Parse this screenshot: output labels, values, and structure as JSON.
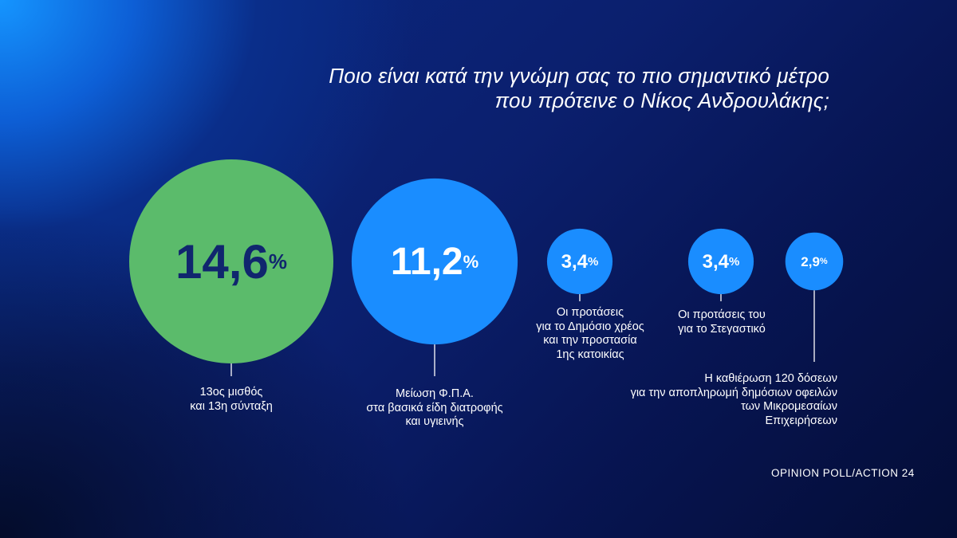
{
  "title": {
    "line1": "Ποιο είναι κατά την γνώμη σας το πιο σημαντικό μέτρο",
    "line2": "που πρότεινε ο Νίκος Ανδρουλάκης;"
  },
  "chart_data": {
    "type": "bubble",
    "unit": "%",
    "categories": [
      "13ος μισθός και 13η σύνταξη",
      "Μείωση Φ.Π.Α. στα βασικά είδη διατροφής και υγιεινής",
      "Οι προτάσεις για το Δημόσιο χρέος και την προστασία 1ης κατοικίας",
      "Οι προτάσεις του για το Στεγαστικό",
      "Η καθιέρωση 120 δόσεων για την αποπληρωμή δημόσιων οφειλών των Μικρομεσαίων Επιχειρήσεων"
    ],
    "values": [
      14.6,
      11.2,
      3.4,
      3.4,
      2.9
    ],
    "value_labels": [
      "14,6",
      "11,2",
      "3,4",
      "3,4",
      "2,9"
    ],
    "label_lines": [
      [
        "13ος μισθός",
        "και 13η σύνταξη"
      ],
      [
        "Μείωση Φ.Π.Α.",
        "στα βασικά είδη διατροφής",
        "και υγιεινής"
      ],
      [
        "Οι προτάσεις",
        "για το Δημόσιο χρέος",
        "και την προστασία",
        "1ης κατοικίας"
      ],
      [
        "Οι προτάσεις του",
        "για το Στεγαστικό"
      ],
      [
        "Η καθιέρωση 120 δόσεων",
        "για την αποπληρωμή δημόσιων οφειλών",
        "των Μικρομεσαίων",
        "Επιχειρήσεων"
      ]
    ],
    "colors": [
      "#5bbb6b",
      "#1a8dff",
      "#1a8dff",
      "#1a8dff",
      "#1a8dff"
    ],
    "value_colors": [
      "#10266e",
      "#ffffff",
      "#ffffff",
      "#ffffff",
      "#ffffff"
    ]
  },
  "source": "OPINION POLL/ACTION 24"
}
